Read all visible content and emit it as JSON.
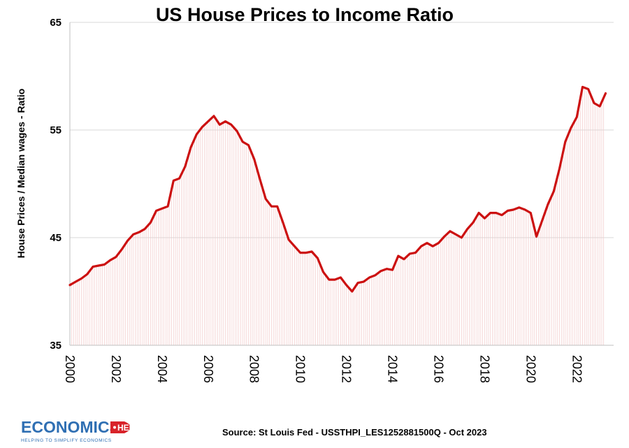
{
  "chart_data": {
    "type": "line",
    "title": "US House Prices to Income Ratio",
    "ylabel": "House Prices / Median wages - Ratio",
    "xlabel": "",
    "ylim": [
      35,
      65
    ],
    "xlim": [
      2000,
      2023.6
    ],
    "yticks": [
      "35",
      "45",
      "55",
      "65"
    ],
    "xticks": [
      "2000",
      "2002",
      "2004",
      "2006",
      "2008",
      "2010",
      "2012",
      "2014",
      "2016",
      "2018",
      "2020",
      "2022"
    ],
    "grid": true,
    "line_color": "#cc1111",
    "series": [
      {
        "name": "",
        "x": [
          2000,
          2000.25,
          2000.5,
          2000.75,
          2001,
          2001.25,
          2001.5,
          2001.75,
          2002,
          2002.25,
          2002.5,
          2002.75,
          2003,
          2003.25,
          2003.5,
          2003.75,
          2004,
          2004.25,
          2004.5,
          2004.75,
          2005,
          2005.25,
          2005.5,
          2005.75,
          2006,
          2006.25,
          2006.5,
          2006.75,
          2007,
          2007.25,
          2007.5,
          2007.75,
          2008,
          2008.25,
          2008.5,
          2008.75,
          2009,
          2009.25,
          2009.5,
          2009.75,
          2010,
          2010.25,
          2010.5,
          2010.75,
          2011,
          2011.25,
          2011.5,
          2011.75,
          2012,
          2012.25,
          2012.5,
          2012.75,
          2013,
          2013.25,
          2013.5,
          2013.75,
          2014,
          2014.25,
          2014.5,
          2014.75,
          2015,
          2015.25,
          2015.5,
          2015.75,
          2016,
          2016.25,
          2016.5,
          2016.75,
          2017,
          2017.25,
          2017.5,
          2017.75,
          2018,
          2018.25,
          2018.5,
          2018.75,
          2019,
          2019.25,
          2019.5,
          2019.75,
          2020,
          2020.25,
          2020.5,
          2020.75,
          2021,
          2021.25,
          2021.5,
          2021.75,
          2022,
          2022.25,
          2022.5,
          2022.75,
          2023,
          2023.25
        ],
        "values": [
          40.6,
          40.9,
          41.2,
          41.6,
          42.3,
          42.4,
          42.5,
          42.9,
          43.2,
          43.9,
          44.7,
          45.3,
          45.5,
          45.8,
          46.4,
          47.5,
          47.7,
          47.9,
          50.3,
          50.5,
          51.6,
          53.4,
          54.6,
          55.3,
          55.8,
          56.3,
          55.5,
          55.8,
          55.5,
          54.9,
          53.9,
          53.6,
          52.3,
          50.4,
          48.6,
          47.9,
          47.9,
          46.4,
          44.8,
          44.2,
          43.6,
          43.6,
          43.7,
          43.1,
          41.8,
          41.1,
          41.1,
          41.3,
          40.6,
          40.0,
          40.8,
          40.9,
          41.3,
          41.5,
          41.9,
          42.1,
          42.0,
          43.3,
          43.0,
          43.5,
          43.6,
          44.2,
          44.5,
          44.2,
          44.5,
          45.1,
          45.6,
          45.3,
          45.0,
          45.8,
          46.4,
          47.3,
          46.8,
          47.3,
          47.3,
          47.1,
          47.5,
          47.6,
          47.8,
          47.6,
          47.3,
          45.1,
          46.6,
          48.1,
          49.3,
          51.4,
          53.9,
          55.2,
          56.2,
          59.0,
          58.8,
          57.5,
          57.2,
          58.4
        ]
      }
    ]
  },
  "source_text": "Source: St Louis Fed - USSTHPI_LES1252881500Q - Oct 2023",
  "logo": {
    "word": "ECONOMICS",
    "badge": "HELP",
    "tagline": "HELPING TO SIMPLIFY ECONOMICS"
  },
  "colors": {
    "line": "#cc1111",
    "fill_hatch": "#f2c9c9",
    "grid": "#d9d9d9",
    "logo_blue": "#2f6fb3",
    "logo_red": "#d8232a"
  }
}
